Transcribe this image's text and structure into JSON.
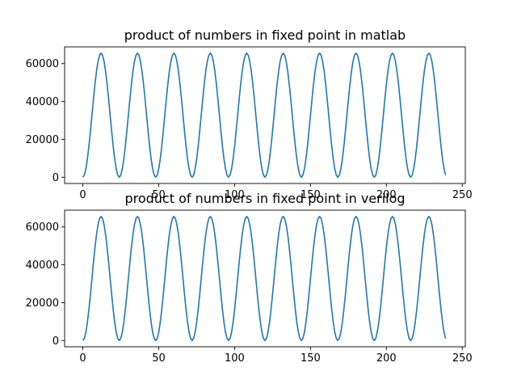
{
  "chart_data": [
    {
      "type": "line",
      "title": "product of numbers in fixed point in matlab",
      "xlabel": "",
      "ylabel": "",
      "xlim": [
        -12,
        252
      ],
      "ylim": [
        -3300,
        68850
      ],
      "xticks": [
        0,
        50,
        100,
        150,
        200,
        250
      ],
      "yticks": [
        0,
        20000,
        40000,
        60000
      ],
      "grid": false,
      "series": [
        {
          "color": "#1f77b4",
          "x_start": 0,
          "x_step": 1,
          "count": 240,
          "period": 24,
          "amplitude": 65536
        }
      ]
    },
    {
      "type": "line",
      "title": "product of numbers in fixed point in verilog",
      "xlabel": "",
      "ylabel": "",
      "xlim": [
        -12,
        252
      ],
      "ylim": [
        -3300,
        68850
      ],
      "xticks": [
        0,
        50,
        100,
        150,
        200,
        250
      ],
      "yticks": [
        0,
        20000,
        40000,
        60000
      ],
      "grid": false,
      "series": [
        {
          "color": "#1f77b4",
          "x_start": 0,
          "x_step": 1,
          "count": 240,
          "period": 24,
          "amplitude": 65536
        }
      ]
    }
  ]
}
